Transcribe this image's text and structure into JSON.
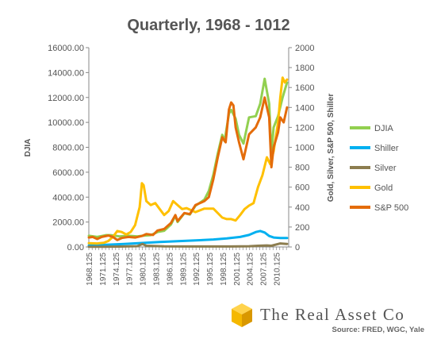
{
  "chart_data": {
    "type": "line",
    "title": "Quarterly, 1968 - 1012",
    "ylabel_left": "DJIA",
    "ylabel_right": "Gold, Silver, S&P 500, Shiller",
    "ylim_left": [
      0,
      16000
    ],
    "ylim_right": [
      0,
      2000
    ],
    "yticks_left": [
      "0.00",
      "2000.00",
      "4000.00",
      "6000.00",
      "8000.00",
      "10000.00",
      "12000.00",
      "14000.00",
      "16000.00"
    ],
    "yticks_right": [
      "0",
      "200",
      "400",
      "600",
      "800",
      "1000",
      "1200",
      "1400",
      "1600",
      "1800",
      "2000"
    ],
    "xlim": [
      1968.125,
      2012.875
    ],
    "xticks": [
      "1968.125",
      "1971.125",
      "1974.125",
      "1977.125",
      "1980.125",
      "1983.125",
      "1986.125",
      "1989.125",
      "1992.125",
      "1995.125",
      "1998.125",
      "2001.125",
      "2004.125",
      "2007.125",
      "2010.125"
    ],
    "legend_position": "right",
    "grid": false,
    "series": [
      {
        "name": "DJIA",
        "axis": "left",
        "color": "#92d050",
        "x": [
          1968.125,
          1970.0,
          1972.0,
          1973.0,
          1975.0,
          1977.0,
          1979.0,
          1980.125,
          1982.0,
          1983.5,
          1985.0,
          1986.5,
          1987.5,
          1988.0,
          1989.5,
          1990.75,
          1992.0,
          1994.0,
          1995.0,
          1996.0,
          1997.0,
          1998.0,
          1998.5,
          1999.5,
          2000.0,
          2001.0,
          2001.75,
          2002.75,
          2004.0,
          2005.5,
          2006.5,
          2007.5,
          2008.5,
          2009.0,
          2009.5,
          2010.5,
          2011.5,
          2012.5
        ],
        "values": [
          900,
          800,
          950,
          950,
          850,
          900,
          850,
          900,
          950,
          1200,
          1300,
          1800,
          2500,
          2000,
          2700,
          2600,
          3300,
          3800,
          4500,
          5800,
          7500,
          9000,
          8500,
          10700,
          11000,
          10300,
          9000,
          8300,
          10400,
          10500,
          11500,
          13500,
          11500,
          7500,
          9600,
          10500,
          12000,
          13200
        ]
      },
      {
        "name": "Shiller",
        "axis": "right",
        "color": "#00b0f0",
        "x": [
          1968.125,
          1972.0,
          1976.0,
          1980.0,
          1984.0,
          1988.0,
          1992.0,
          1996.0,
          1999.0,
          2002.0,
          2004.0,
          2005.5,
          2006.5,
          2007.5,
          2008.5,
          2009.5,
          2011.0,
          2012.5
        ],
        "values": [
          15,
          22,
          30,
          40,
          50,
          58,
          65,
          75,
          85,
          100,
          120,
          150,
          160,
          145,
          110,
          95,
          90,
          90
        ]
      },
      {
        "name": "Silver",
        "axis": "right",
        "color": "#8c7d4f",
        "x": [
          1968.125,
          1972.0,
          1975.0,
          1979.0,
          1980.125,
          1981.0,
          1985.0,
          1990.0,
          1995.0,
          2000.0,
          2004.0,
          2006.0,
          2008.0,
          2009.0,
          2011.0,
          2012.5
        ],
        "values": [
          2,
          2,
          4,
          8,
          30,
          12,
          6,
          5,
          5,
          5,
          7,
          12,
          15,
          12,
          35,
          30
        ]
      },
      {
        "name": "Gold",
        "axis": "right",
        "color": "#ffc000",
        "x": [
          1968.125,
          1970.0,
          1971.5,
          1972.5,
          1973.5,
          1974.5,
          1975.5,
          1976.5,
          1977.5,
          1978.5,
          1979.5,
          1980.0,
          1980.4,
          1981.0,
          1982.0,
          1983.0,
          1984.0,
          1985.0,
          1986.0,
          1987.0,
          1988.0,
          1989.0,
          1990.0,
          1992.0,
          1994.0,
          1996.0,
          1998.0,
          1999.0,
          2000.0,
          2001.0,
          2002.0,
          2003.0,
          2004.0,
          2005.0,
          2006.0,
          2007.0,
          2008.0,
          2008.75,
          2009.5,
          2010.5,
          2011.0,
          2011.5,
          2012.0,
          2012.5
        ],
        "values": [
          38,
          35,
          42,
          60,
          100,
          160,
          150,
          125,
          150,
          220,
          400,
          640,
          620,
          460,
          420,
          440,
          380,
          320,
          360,
          460,
          420,
          380,
          390,
          350,
          385,
          385,
          295,
          280,
          280,
          265,
          320,
          380,
          415,
          440,
          600,
          720,
          900,
          830,
          960,
          1250,
          1500,
          1700,
          1650,
          1680
        ]
      },
      {
        "name": "S&P 500",
        "axis": "right",
        "color": "#e46c0a",
        "x": [
          1968.125,
          1969.0,
          1970.0,
          1971.0,
          1972.5,
          1973.5,
          1974.5,
          1975.5,
          1977.0,
          1978.5,
          1980.0,
          1981.0,
          1982.5,
          1983.5,
          1985.0,
          1986.5,
          1987.5,
          1988.0,
          1989.5,
          1990.75,
          1992.0,
          1994.0,
          1995.0,
          1996.0,
          1997.0,
          1998.0,
          1998.75,
          1999.5,
          2000.0,
          2000.5,
          2001.0,
          2001.75,
          2002.75,
          2004.0,
          2005.5,
          2006.5,
          2007.5,
          2008.5,
          2009.0,
          2009.5,
          2010.5,
          2011.0,
          2011.75,
          2012.5
        ],
        "values": [
          95,
          100,
          80,
          100,
          115,
          100,
          70,
          90,
          100,
          95,
          110,
          130,
          120,
          165,
          180,
          240,
          320,
          260,
          340,
          330,
          420,
          460,
          500,
          680,
          900,
          1100,
          1050,
          1380,
          1450,
          1420,
          1200,
          1050,
          880,
          1130,
          1200,
          1300,
          1500,
          1300,
          800,
          1000,
          1150,
          1300,
          1250,
          1400
        ]
      }
    ]
  },
  "legend": {
    "items": [
      {
        "name": "DJIA",
        "color": "#92d050"
      },
      {
        "name": "Shiller",
        "color": "#00b0f0"
      },
      {
        "name": "Silver",
        "color": "#8c7d4f"
      },
      {
        "name": "Gold",
        "color": "#ffc000"
      },
      {
        "name": "S&P 500",
        "color": "#e46c0a"
      }
    ]
  },
  "branding": {
    "company": "The Real Asset Co",
    "source": "Source: FRED, WGC, Yale"
  }
}
